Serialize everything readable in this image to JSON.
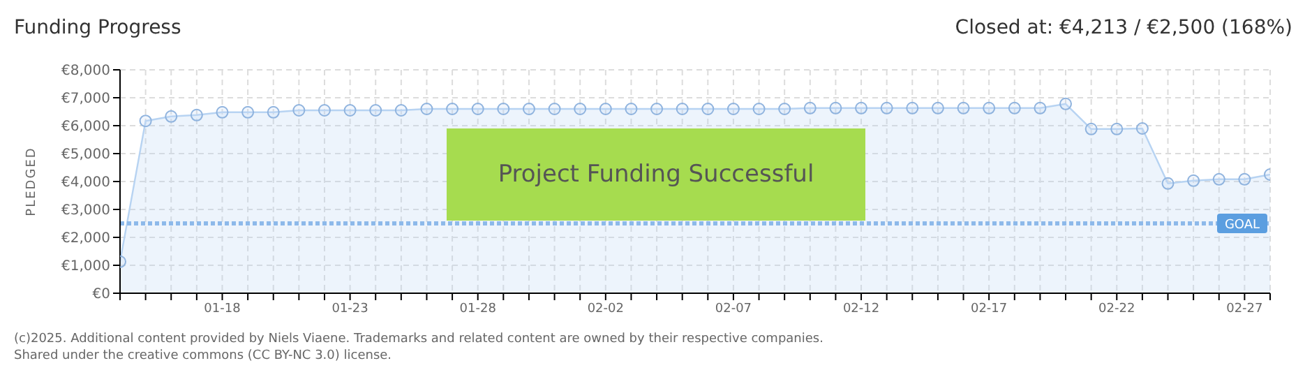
{
  "chart_data": {
    "type": "area",
    "title": "Funding Progress",
    "ylabel": "PLEDGED",
    "annotations": [
      "Closed at:  €4,213 /  €2,500 (168%)",
      "Project Funding Successful",
      "(c)2025. Additional content provided by Niels Viaene. Trademarks and related content are owned by their respective companies.",
      "Shared under the creative commons (CC BY-NC 3.0) license."
    ],
    "categories": [
      null,
      null,
      null,
      null,
      "01-18",
      null,
      null,
      null,
      null,
      "01-23",
      null,
      null,
      null,
      null,
      "01-28",
      null,
      null,
      null,
      null,
      "02-02",
      null,
      null,
      null,
      null,
      "02-07",
      null,
      null,
      null,
      null,
      "02-12",
      null,
      null,
      null,
      null,
      "02-17",
      null,
      null,
      null,
      null,
      "02-22",
      null,
      null,
      null,
      null,
      "02-27",
      null
    ],
    "series": [
      {
        "color": "#b7d3f2",
        "values": [
          1130,
          6170,
          6330,
          6380,
          6480,
          6480,
          6480,
          6550,
          6550,
          6550,
          6550,
          6550,
          6600,
          6600,
          6600,
          6600,
          6600,
          6600,
          6600,
          6600,
          6600,
          6600,
          6600,
          6600,
          6600,
          6600,
          6600,
          6630,
          6630,
          6630,
          6630,
          6630,
          6630,
          6630,
          6630,
          6630,
          6630,
          6780,
          5880,
          5880,
          5900,
          3930,
          4030,
          4080,
          4080,
          4250
        ]
      }
    ],
    "ylim": [
      0,
      8000
    ],
    "yticks": [
      {
        "value": 0,
        "label": "€0"
      },
      {
        "value": 1000,
        "label": "€1,000"
      },
      {
        "value": 2000,
        "label": "€2,000"
      },
      {
        "value": 3000,
        "label": "€3,000"
      },
      {
        "value": 4000,
        "label": "€4,000"
      },
      {
        "value": 5000,
        "label": "€5,000"
      },
      {
        "value": 6000,
        "label": "€6,000"
      },
      {
        "value": 7000,
        "label": "€7,000"
      },
      {
        "value": 8000,
        "label": "€8,000"
      }
    ],
    "ref_lines": [
      {
        "axis": "y",
        "value": 2500,
        "label": "GOAL",
        "color": "#8db9ea",
        "line_style": "dotted"
      }
    ],
    "grid": true,
    "marker": "circle"
  }
}
